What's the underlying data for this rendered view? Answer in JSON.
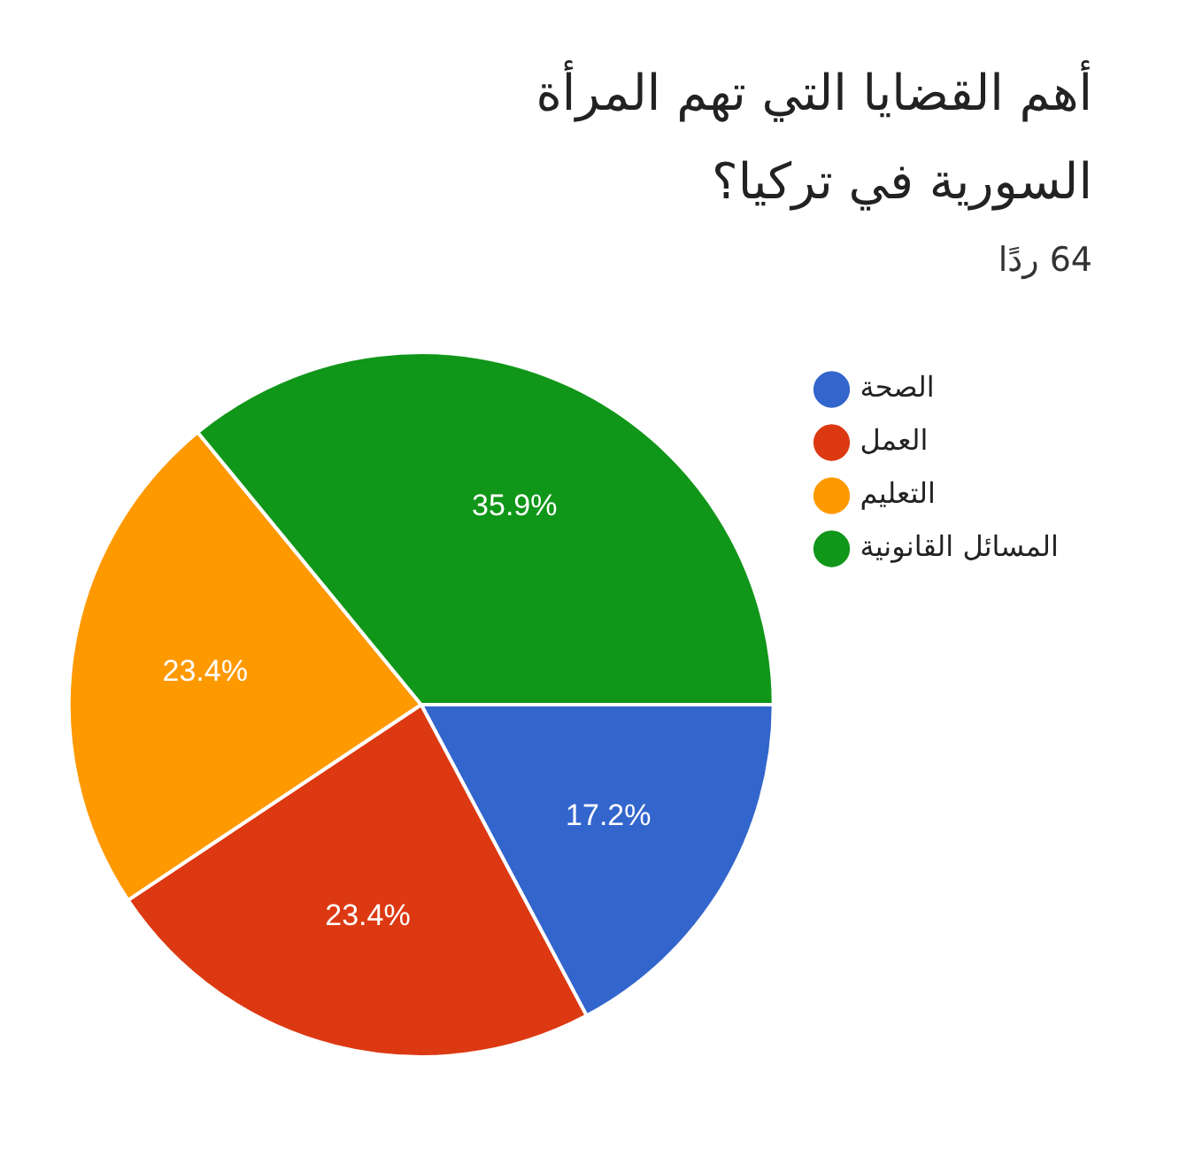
{
  "chart_data": {
    "type": "pie",
    "title": "أهم القضايا التي تهم المرأة السورية في تركيا؟",
    "subtitle": "64 ردًا",
    "categories": [
      "الصحة",
      "العمل",
      "التعليم",
      "المسائل القانونية"
    ],
    "values": [
      17.2,
      23.4,
      23.4,
      35.9
    ],
    "value_labels": [
      "17.2%",
      "23.4%",
      "23.4%",
      "35.9%"
    ],
    "colors": [
      "#3366cc",
      "#dc3912",
      "#ff9900",
      "#109618"
    ],
    "legend": "right"
  }
}
